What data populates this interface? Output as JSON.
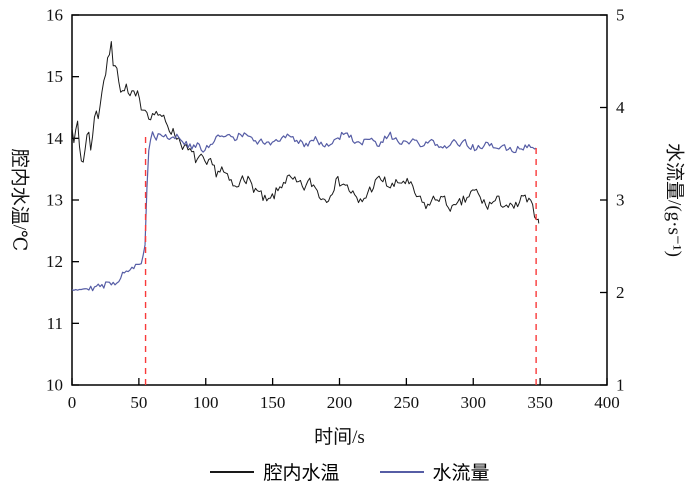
{
  "figure": {
    "background": "#ffffff",
    "frame_color": "#000000",
    "tick_label_color": "#111111"
  },
  "chart_data": {
    "type": "line",
    "title": "",
    "xlabel": "时间/s",
    "ylabel_left": "腔内水温/℃",
    "ylabel_right": "水流量/(g·s⁻¹)",
    "xlim": [
      0,
      400
    ],
    "xticks": [
      0,
      50,
      100,
      150,
      200,
      250,
      300,
      350,
      400
    ],
    "ylim_left": [
      10,
      16
    ],
    "yticks_left": [
      10,
      11,
      12,
      13,
      14,
      15,
      16
    ],
    "ylim_right": [
      1,
      5
    ],
    "yticks_right": [
      1,
      2,
      3,
      4,
      5
    ],
    "grid": false,
    "legend_position": "bottom",
    "series": [
      {
        "name": "腔内水温",
        "axis": "left",
        "color": "#1a1a1a",
        "line_width": 1.0,
        "noise_amplitude": 0.085,
        "noise_step": 1.4,
        "seed": 7,
        "anchors": [
          [
            0,
            14.25
          ],
          [
            2,
            13.9
          ],
          [
            4,
            14.3
          ],
          [
            6,
            13.75
          ],
          [
            8,
            13.55
          ],
          [
            10,
            13.9
          ],
          [
            12,
            14.15
          ],
          [
            14,
            13.85
          ],
          [
            16,
            14.2
          ],
          [
            18,
            14.45
          ],
          [
            20,
            14.35
          ],
          [
            22,
            14.75
          ],
          [
            24,
            14.95
          ],
          [
            26,
            15.15
          ],
          [
            28,
            15.4
          ],
          [
            30,
            15.55
          ],
          [
            31,
            15.15
          ],
          [
            33,
            15.3
          ],
          [
            35,
            14.95
          ],
          [
            37,
            14.65
          ],
          [
            39,
            14.85
          ],
          [
            41,
            14.8
          ],
          [
            43,
            14.65
          ],
          [
            45,
            14.75
          ],
          [
            47,
            14.65
          ],
          [
            49,
            14.7
          ],
          [
            51,
            14.55
          ],
          [
            54,
            14.5
          ],
          [
            57,
            14.4
          ],
          [
            60,
            14.35
          ],
          [
            63,
            14.45
          ],
          [
            66,
            14.3
          ],
          [
            69,
            14.35
          ],
          [
            72,
            14.2
          ],
          [
            75,
            14.1
          ],
          [
            78,
            14.05
          ],
          [
            81,
            13.95
          ],
          [
            84,
            13.85
          ],
          [
            87,
            13.8
          ],
          [
            90,
            13.75
          ],
          [
            93,
            13.65
          ],
          [
            96,
            13.7
          ],
          [
            100,
            13.55
          ],
          [
            104,
            13.6
          ],
          [
            108,
            13.45
          ],
          [
            112,
            13.5
          ],
          [
            116,
            13.35
          ],
          [
            120,
            13.25
          ],
          [
            124,
            13.15
          ],
          [
            127,
            13.45
          ],
          [
            130,
            13.35
          ],
          [
            134,
            13.25
          ],
          [
            138,
            13.15
          ],
          [
            142,
            13.05
          ],
          [
            146,
            12.95
          ],
          [
            150,
            13.05
          ],
          [
            154,
            13.15
          ],
          [
            158,
            13.3
          ],
          [
            162,
            13.35
          ],
          [
            166,
            13.3
          ],
          [
            170,
            13.25
          ],
          [
            174,
            13.2
          ],
          [
            178,
            13.3
          ],
          [
            182,
            13.2
          ],
          [
            186,
            13.05
          ],
          [
            190,
            13.0
          ],
          [
            194,
            13.15
          ],
          [
            198,
            13.3
          ],
          [
            202,
            13.3
          ],
          [
            206,
            13.2
          ],
          [
            210,
            13.1
          ],
          [
            214,
            12.95
          ],
          [
            218,
            13.0
          ],
          [
            222,
            13.15
          ],
          [
            226,
            13.25
          ],
          [
            230,
            13.35
          ],
          [
            234,
            13.3
          ],
          [
            238,
            13.2
          ],
          [
            242,
            13.25
          ],
          [
            246,
            13.3
          ],
          [
            250,
            13.3
          ],
          [
            254,
            13.2
          ],
          [
            258,
            13.05
          ],
          [
            262,
            12.95
          ],
          [
            266,
            12.9
          ],
          [
            270,
            13.0
          ],
          [
            274,
            13.05
          ],
          [
            278,
            13.0
          ],
          [
            282,
            12.9
          ],
          [
            286,
            12.85
          ],
          [
            290,
            12.95
          ],
          [
            294,
            13.0
          ],
          [
            298,
            13.1
          ],
          [
            302,
            13.15
          ],
          [
            306,
            13.0
          ],
          [
            310,
            12.9
          ],
          [
            314,
            12.95
          ],
          [
            318,
            13.0
          ],
          [
            322,
            12.95
          ],
          [
            326,
            12.9
          ],
          [
            330,
            12.85
          ],
          [
            334,
            12.95
          ],
          [
            338,
            13.05
          ],
          [
            342,
            12.95
          ],
          [
            345,
            12.85
          ],
          [
            347,
            12.75
          ],
          [
            349,
            12.62
          ]
        ]
      },
      {
        "name": "水流量",
        "axis": "right",
        "color": "#565da5",
        "line_width": 1.2,
        "noise_amplitude": 0.035,
        "noise_step": 1.4,
        "seed": 29,
        "anchors": [
          [
            0,
            2.05
          ],
          [
            6,
            2.04
          ],
          [
            12,
            2.06
          ],
          [
            18,
            2.05
          ],
          [
            24,
            2.08
          ],
          [
            30,
            2.1
          ],
          [
            34,
            2.12
          ],
          [
            37,
            2.2
          ],
          [
            40,
            2.24
          ],
          [
            44,
            2.26
          ],
          [
            48,
            2.28
          ],
          [
            51,
            2.3
          ],
          [
            53,
            2.36
          ],
          [
            55,
            2.55
          ],
          [
            56,
            3.1
          ],
          [
            57,
            3.5
          ],
          [
            58,
            3.66
          ],
          [
            60,
            3.72
          ],
          [
            63,
            3.68
          ],
          [
            66,
            3.72
          ],
          [
            70,
            3.7
          ],
          [
            74,
            3.66
          ],
          [
            78,
            3.7
          ],
          [
            82,
            3.64
          ],
          [
            86,
            3.6
          ],
          [
            90,
            3.56
          ],
          [
            94,
            3.6
          ],
          [
            98,
            3.52
          ],
          [
            102,
            3.58
          ],
          [
            106,
            3.64
          ],
          [
            110,
            3.68
          ],
          [
            114,
            3.72
          ],
          [
            118,
            3.7
          ],
          [
            122,
            3.66
          ],
          [
            126,
            3.7
          ],
          [
            130,
            3.72
          ],
          [
            134,
            3.66
          ],
          [
            138,
            3.6
          ],
          [
            142,
            3.64
          ],
          [
            146,
            3.62
          ],
          [
            150,
            3.6
          ],
          [
            154,
            3.64
          ],
          [
            158,
            3.68
          ],
          [
            162,
            3.72
          ],
          [
            166,
            3.66
          ],
          [
            170,
            3.62
          ],
          [
            174,
            3.6
          ],
          [
            178,
            3.63
          ],
          [
            182,
            3.66
          ],
          [
            186,
            3.62
          ],
          [
            190,
            3.58
          ],
          [
            194,
            3.62
          ],
          [
            198,
            3.66
          ],
          [
            202,
            3.7
          ],
          [
            206,
            3.72
          ],
          [
            210,
            3.66
          ],
          [
            214,
            3.6
          ],
          [
            218,
            3.62
          ],
          [
            222,
            3.66
          ],
          [
            226,
            3.62
          ],
          [
            230,
            3.58
          ],
          [
            234,
            3.66
          ],
          [
            238,
            3.7
          ],
          [
            242,
            3.66
          ],
          [
            246,
            3.62
          ],
          [
            250,
            3.6
          ],
          [
            254,
            3.64
          ],
          [
            258,
            3.62
          ],
          [
            262,
            3.58
          ],
          [
            266,
            3.6
          ],
          [
            270,
            3.64
          ],
          [
            274,
            3.6
          ],
          [
            278,
            3.56
          ],
          [
            282,
            3.6
          ],
          [
            286,
            3.62
          ],
          [
            290,
            3.6
          ],
          [
            294,
            3.62
          ],
          [
            298,
            3.58
          ],
          [
            302,
            3.55
          ],
          [
            306,
            3.58
          ],
          [
            310,
            3.6
          ],
          [
            314,
            3.58
          ],
          [
            318,
            3.55
          ],
          [
            322,
            3.58
          ],
          [
            326,
            3.56
          ],
          [
            330,
            3.52
          ],
          [
            334,
            3.55
          ],
          [
            338,
            3.58
          ],
          [
            342,
            3.6
          ],
          [
            345,
            3.58
          ],
          [
            347,
            3.56
          ]
        ]
      }
    ],
    "annotations": [
      {
        "type": "vline",
        "x": 55,
        "y_from": 1,
        "y_to": 3.72,
        "axis": "right",
        "color": "#f93a3a",
        "dash": [
          6,
          5
        ]
      },
      {
        "type": "vline",
        "x": 347,
        "y_from": 1,
        "y_to": 3.6,
        "axis": "right",
        "color": "#f93a3a",
        "dash": [
          6,
          5
        ]
      }
    ]
  },
  "legend": {
    "items": [
      {
        "label": "腔内水温"
      },
      {
        "label": "水流量"
      }
    ]
  }
}
